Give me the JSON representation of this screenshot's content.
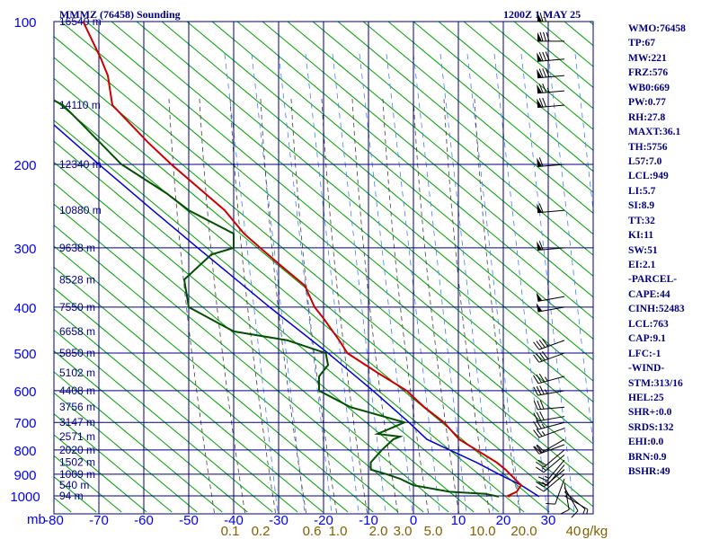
{
  "chart_data": {
    "type": "skew-t",
    "title": "MMMZ (76458) Sounding",
    "valid_time": "1200Z  1 MAY 25",
    "pressure_unit_label": "mb",
    "pressure_ticks": [
      100,
      200,
      300,
      400,
      500,
      600,
      700,
      800,
      900,
      1000
    ],
    "temperature_ticks": [
      -80,
      -70,
      -60,
      -50,
      -40,
      -30,
      -20,
      -10,
      0,
      10,
      20,
      30
    ],
    "temperature_range": [
      -80,
      40
    ],
    "pressure_range": [
      100,
      1050
    ],
    "mixing_ratio_labels": [
      "0.1",
      "0.2",
      "0.6",
      "1.0",
      "2.0",
      "3.0",
      "5.0",
      "10.0",
      "20.0",
      "40",
      "g/kg"
    ],
    "height_labels": [
      {
        "p": 100,
        "text": "16540 m"
      },
      {
        "p": 150,
        "text": "14110 m"
      },
      {
        "p": 200,
        "text": "12340 m"
      },
      {
        "p": 250,
        "text": "10880 m"
      },
      {
        "p": 300,
        "text": "9638 m"
      },
      {
        "p": 350,
        "text": "8528 m"
      },
      {
        "p": 400,
        "text": "7550 m"
      },
      {
        "p": 450,
        "text": "6658 m"
      },
      {
        "p": 500,
        "text": "5850 m"
      },
      {
        "p": 550,
        "text": "5102 m"
      },
      {
        "p": 600,
        "text": "4408 m"
      },
      {
        "p": 650,
        "text": "3756 m"
      },
      {
        "p": 700,
        "text": "3147 m"
      },
      {
        "p": 750,
        "text": "2571 m"
      },
      {
        "p": 800,
        "text": "2020 m"
      },
      {
        "p": 850,
        "text": "1502 m"
      },
      {
        "p": 900,
        "text": "1009 m"
      },
      {
        "p": 950,
        "text": "540 m"
      },
      {
        "p": 1000,
        "text": "94 m"
      }
    ],
    "temperature": [
      {
        "p": 1004,
        "t": 21.5
      },
      {
        "p": 1000,
        "t": 21.0
      },
      {
        "p": 990,
        "t": 22.0
      },
      {
        "p": 980,
        "t": 23.0
      },
      {
        "p": 960,
        "t": 23.6
      },
      {
        "p": 950,
        "t": 24.0
      },
      {
        "p": 930,
        "t": 23.0
      },
      {
        "p": 900,
        "t": 21.5
      },
      {
        "p": 880,
        "t": 20.5
      },
      {
        "p": 850,
        "t": 18.5
      },
      {
        "p": 800,
        "t": 14.0
      },
      {
        "p": 760,
        "t": 10.2
      },
      {
        "p": 700,
        "t": 6.8
      },
      {
        "p": 650,
        "t": 2.4
      },
      {
        "p": 600,
        "t": -1.5
      },
      {
        "p": 550,
        "t": -8.0
      },
      {
        "p": 500,
        "t": -14.7
      },
      {
        "p": 470,
        "t": -16.5
      },
      {
        "p": 420,
        "t": -20.2
      },
      {
        "p": 400,
        "t": -22.0
      },
      {
        "p": 360,
        "t": -24.2
      },
      {
        "p": 330,
        "t": -29.0
      },
      {
        "p": 300,
        "t": -34.1
      },
      {
        "p": 280,
        "t": -37.7
      },
      {
        "p": 250,
        "t": -42.0
      },
      {
        "p": 200,
        "t": -53.9
      },
      {
        "p": 180,
        "t": -59.0
      },
      {
        "p": 150,
        "t": -67.0
      },
      {
        "p": 130,
        "t": -68.0
      },
      {
        "p": 120,
        "t": -69.5
      },
      {
        "p": 100,
        "t": -73.5
      }
    ],
    "dewpoint": [
      {
        "p": 1004,
        "t": 19.0
      },
      {
        "p": 990,
        "t": 16.0
      },
      {
        "p": 980,
        "t": 8.0
      },
      {
        "p": 950,
        "t": 0.0
      },
      {
        "p": 920,
        "t": -3.0
      },
      {
        "p": 900,
        "t": -6.0
      },
      {
        "p": 880,
        "t": -9.5
      },
      {
        "p": 850,
        "t": -9.5
      },
      {
        "p": 800,
        "t": -7.0
      },
      {
        "p": 760,
        "t": -4.5
      },
      {
        "p": 750,
        "t": -3.0
      },
      {
        "p": 740,
        "t": -8.0
      },
      {
        "p": 720,
        "t": -5.0
      },
      {
        "p": 700,
        "t": -2.0
      },
      {
        "p": 650,
        "t": -14.0
      },
      {
        "p": 600,
        "t": -21.0
      },
      {
        "p": 560,
        "t": -21.0
      },
      {
        "p": 530,
        "t": -19.0
      },
      {
        "p": 500,
        "t": -19.5
      },
      {
        "p": 470,
        "t": -28.0
      },
      {
        "p": 450,
        "t": -40.0
      },
      {
        "p": 400,
        "t": -50.0
      },
      {
        "p": 350,
        "t": -51.0
      },
      {
        "p": 310,
        "t": -45.0
      },
      {
        "p": 300,
        "t": -40.0
      },
      {
        "p": 280,
        "t": -40.0
      },
      {
        "p": 250,
        "t": -50.0
      },
      {
        "p": 230,
        "t": -55.0
      },
      {
        "p": 200,
        "t": -65.0
      },
      {
        "p": 160,
        "t": -75.0
      },
      {
        "p": 150,
        "t": -78.0
      },
      {
        "p": 140,
        "t": -84.0
      },
      {
        "p": 130,
        "t": -88.0
      }
    ],
    "parcel": [
      {
        "p": 1004,
        "t": 28.0
      },
      {
        "p": 950,
        "t": 24.0
      },
      {
        "p": 900,
        "t": 19.0
      },
      {
        "p": 850,
        "t": 14.0
      },
      {
        "p": 800,
        "t": 8.0
      },
      {
        "p": 760,
        "t": 3.0
      },
      {
        "p": 700,
        "t": -1.0
      },
      {
        "p": 600,
        "t": -9.0
      },
      {
        "p": 500,
        "t": -19.0
      },
      {
        "p": 400,
        "t": -32.0
      },
      {
        "p": 300,
        "t": -48.0
      },
      {
        "p": 250,
        "t": -58.0
      },
      {
        "p": 200,
        "t": -70.0
      },
      {
        "p": 150,
        "t": -85.0
      }
    ],
    "wind_barbs": [
      {
        "p": 1000,
        "dir": 120,
        "kt": 5
      },
      {
        "p": 980,
        "dir": 130,
        "kt": 5
      },
      {
        "p": 960,
        "dir": 150,
        "kt": 10
      },
      {
        "p": 940,
        "dir": 170,
        "kt": 10
      },
      {
        "p": 920,
        "dir": 200,
        "kt": 10
      },
      {
        "p": 900,
        "dir": 230,
        "kt": 10
      },
      {
        "p": 880,
        "dir": 230,
        "kt": 15
      },
      {
        "p": 860,
        "dir": 220,
        "kt": 15
      },
      {
        "p": 840,
        "dir": 220,
        "kt": 15
      },
      {
        "p": 820,
        "dir": 230,
        "kt": 15
      },
      {
        "p": 800,
        "dir": 230,
        "kt": 20
      },
      {
        "p": 780,
        "dir": 250,
        "kt": 20
      },
      {
        "p": 760,
        "dir": 240,
        "kt": 20
      },
      {
        "p": 720,
        "dir": 250,
        "kt": 25
      },
      {
        "p": 700,
        "dir": 255,
        "kt": 25
      },
      {
        "p": 680,
        "dir": 260,
        "kt": 30
      },
      {
        "p": 650,
        "dir": 265,
        "kt": 30
      },
      {
        "p": 600,
        "dir": 260,
        "kt": 35
      },
      {
        "p": 560,
        "dir": 255,
        "kt": 35
      },
      {
        "p": 500,
        "dir": 250,
        "kt": 40
      },
      {
        "p": 470,
        "dir": 250,
        "kt": 40
      },
      {
        "p": 400,
        "dir": 260,
        "kt": 50
      },
      {
        "p": 380,
        "dir": 260,
        "kt": 50
      },
      {
        "p": 300,
        "dir": 265,
        "kt": 60
      },
      {
        "p": 250,
        "dir": 265,
        "kt": 60
      },
      {
        "p": 200,
        "dir": 265,
        "kt": 60
      },
      {
        "p": 150,
        "dir": 265,
        "kt": 70
      },
      {
        "p": 140,
        "dir": 265,
        "kt": 75
      },
      {
        "p": 130,
        "dir": 265,
        "kt": 80
      },
      {
        "p": 120,
        "dir": 265,
        "kt": 80
      },
      {
        "p": 110,
        "dir": 270,
        "kt": 80
      },
      {
        "p": 100,
        "dir": 270,
        "kt": 65
      }
    ],
    "colors": {
      "background": "#ffffff",
      "grid": "#000080",
      "axis_text": "#0000ff",
      "temperature": "#cc0000",
      "dewpoint": "#005000",
      "parcel": "#0000cc",
      "dry_adiabat": "#00a000",
      "moist_adiabat": "#404040",
      "mixing_ratio": "#4080ff",
      "mixing_ratio_text": "#806000",
      "wind": "#000000"
    }
  },
  "indices": [
    "WMO:76458",
    "TP:67",
    "MW:221",
    "FRZ:576",
    "WB0:669",
    "PW:0.77",
    "RH:27.8",
    "MAXT:36.1",
    "TH:5756",
    "L57:7.0",
    "LCL:949",
    "LI:5.7",
    "SI:8.9",
    "TT:32",
    "KI:11",
    "SW:51",
    "EI:2.1",
    "-PARCEL-",
    "CAPE:44",
    "CINH:52483",
    "LCL:763",
    "CAP:9.1",
    "LFC:-1",
    "-WIND-",
    "STM:313/16",
    "HEL:25",
    "SHR+:0.0",
    "SRDS:132",
    "EHI:0.0",
    "BRN:0.9",
    "BSHR:49"
  ]
}
